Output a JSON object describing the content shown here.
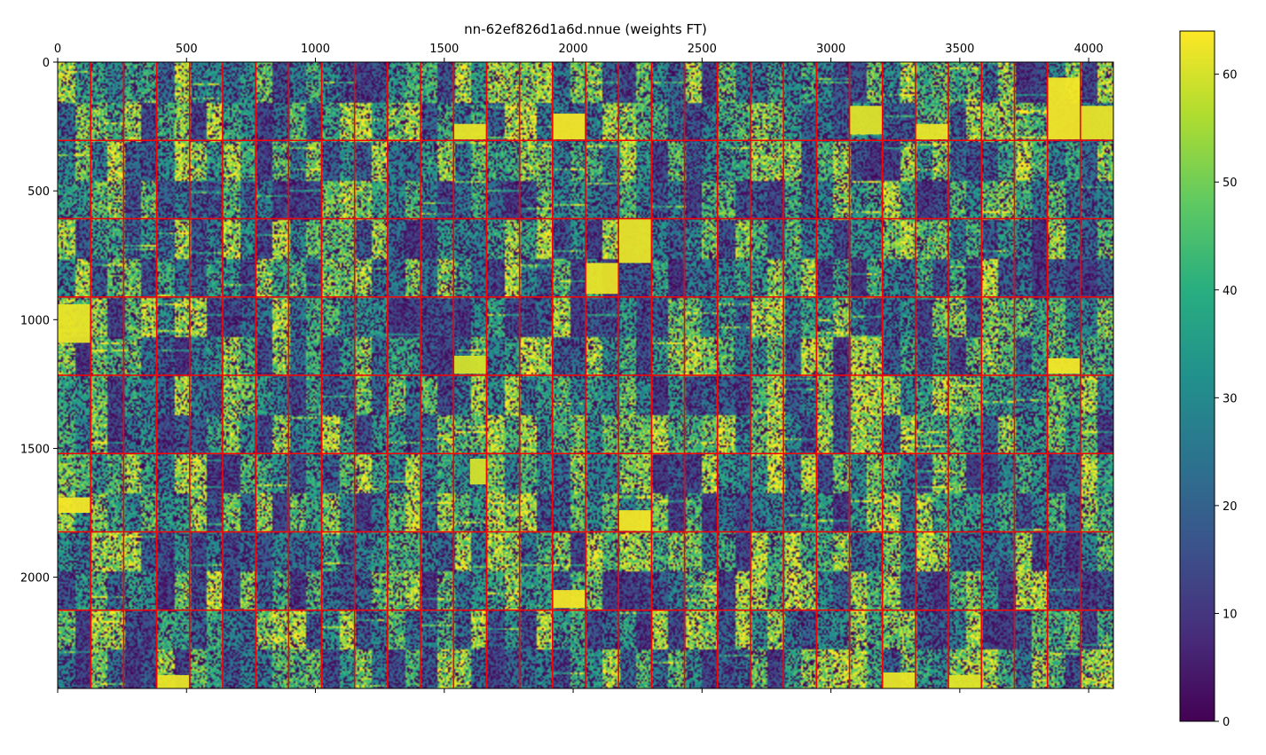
{
  "chart_data": {
    "type": "heatmap",
    "title": "nn-62ef826d1a6d.nnue (weights FT)",
    "xlabel": "",
    "ylabel": "",
    "xlim": [
      0,
      4096
    ],
    "ylim": [
      2432,
      0
    ],
    "x_ticks": [
      0,
      500,
      1000,
      1500,
      2000,
      2500,
      3000,
      3500,
      4000
    ],
    "y_ticks": [
      0,
      500,
      1000,
      1500,
      2000
    ],
    "x_tick_labels": [
      "0",
      "500",
      "1000",
      "1500",
      "2000",
      "2500",
      "3000",
      "3500",
      "4000"
    ],
    "y_tick_labels": [
      "0",
      "500",
      "1000",
      "1500",
      "2000"
    ],
    "x_ticks_position": "top",
    "grid": false,
    "block_grid": {
      "color": "#ff0000",
      "vertical_lines_x": [
        128,
        256,
        384,
        512,
        640,
        768,
        896,
        1024,
        1152,
        1280,
        1408,
        1536,
        1664,
        1792,
        1920,
        2048,
        2176,
        2304,
        2432,
        2560,
        2688,
        2816,
        2944,
        3072,
        3200,
        3328,
        3456,
        3584,
        3712,
        3840,
        3968
      ],
      "horizontal_lines_y": [
        304,
        608,
        912,
        1216,
        1520,
        1824,
        2128
      ]
    },
    "colormap": "viridis",
    "color_range": [
      0,
      64
    ],
    "colorbar": {
      "ticks": [
        0,
        10,
        20,
        30,
        40,
        50,
        60
      ],
      "tick_labels": [
        "0",
        "10",
        "20",
        "30",
        "40",
        "50",
        "60"
      ],
      "position": "right"
    },
    "bright_blocks": [
      {
        "x": [
          1920,
          2048
        ],
        "y": [
          200,
          300
        ],
        "value": 63
      },
      {
        "x": [
          3840,
          3968
        ],
        "y": [
          60,
          300
        ],
        "value": 63
      },
      {
        "x": [
          3968,
          4096
        ],
        "y": [
          170,
          300
        ],
        "value": 62
      },
      {
        "x": [
          3072,
          3200
        ],
        "y": [
          170,
          280
        ],
        "value": 61
      },
      {
        "x": [
          3328,
          3456
        ],
        "y": [
          240,
          300
        ],
        "value": 62
      },
      {
        "x": [
          1536,
          1664
        ],
        "y": [
          240,
          300
        ],
        "value": 62
      },
      {
        "x": [
          2176,
          2304
        ],
        "y": [
          610,
          780
        ],
        "value": 62
      },
      {
        "x": [
          2048,
          2176
        ],
        "y": [
          780,
          900
        ],
        "value": 62
      },
      {
        "x": [
          0,
          128
        ],
        "y": [
          940,
          1090
        ],
        "value": 62
      },
      {
        "x": [
          1536,
          1664
        ],
        "y": [
          1140,
          1210
        ],
        "value": 60
      },
      {
        "x": [
          3840,
          3968
        ],
        "y": [
          1150,
          1210
        ],
        "value": 63
      },
      {
        "x": [
          0,
          128
        ],
        "y": [
          1690,
          1750
        ],
        "value": 63
      },
      {
        "x": [
          2176,
          2304
        ],
        "y": [
          1740,
          1820
        ],
        "value": 63
      },
      {
        "x": [
          1920,
          2048
        ],
        "y": [
          2050,
          2120
        ],
        "value": 63
      },
      {
        "x": [
          384,
          512
        ],
        "y": [
          2380,
          2432
        ],
        "value": 62
      },
      {
        "x": [
          3456,
          3584
        ],
        "y": [
          2380,
          2432
        ],
        "value": 61
      },
      {
        "x": [
          3200,
          3328
        ],
        "y": [
          2370,
          2432
        ],
        "value": 62
      },
      {
        "x": [
          1600,
          1664
        ],
        "y": [
          1540,
          1640
        ],
        "value": 60
      }
    ]
  }
}
